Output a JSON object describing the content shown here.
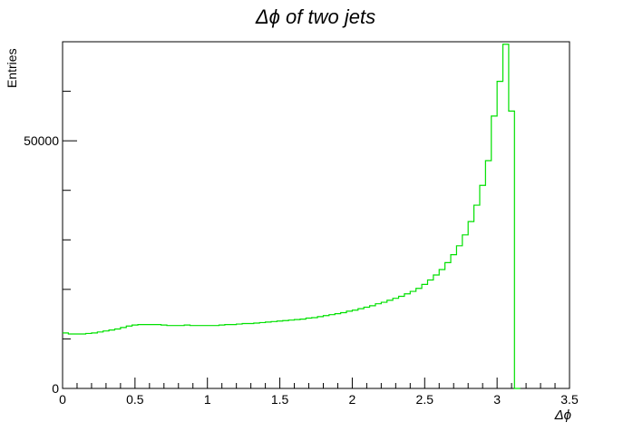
{
  "chart_data": {
    "type": "step-histogram",
    "title": "Δϕ   of   two   jets",
    "xlabel": "Δϕ",
    "ylabel": "Entries",
    "xlim": [
      0,
      3.5
    ],
    "ylim": [
      0,
      70000
    ],
    "x_ticks": [
      {
        "value": 0,
        "label": "0"
      },
      {
        "value": 0.5,
        "label": "0.5"
      },
      {
        "value": 1,
        "label": "1"
      },
      {
        "value": 1.5,
        "label": "1.5"
      },
      {
        "value": 2,
        "label": "2"
      },
      {
        "value": 2.5,
        "label": "2.5"
      },
      {
        "value": 3,
        "label": "3"
      },
      {
        "value": 3.5,
        "label": "3.5"
      }
    ],
    "y_ticks": [
      {
        "value": 0,
        "label": "0"
      },
      {
        "value": 50000,
        "label": "50000"
      }
    ],
    "line_color": "#00e000",
    "bin_edges_x": [
      0,
      3.15
    ],
    "bin_width": 0.04,
    "values": [
      11200,
      11000,
      11000,
      11000,
      11100,
      11200,
      11400,
      11600,
      11800,
      12000,
      12300,
      12600,
      12800,
      12900,
      12900,
      12900,
      12900,
      12800,
      12700,
      12700,
      12700,
      12800,
      12700,
      12700,
      12700,
      12700,
      12700,
      12800,
      12900,
      12900,
      13000,
      13100,
      13100,
      13200,
      13300,
      13400,
      13500,
      13600,
      13700,
      13800,
      13900,
      14000,
      14200,
      14300,
      14500,
      14700,
      14900,
      15100,
      15300,
      15600,
      15800,
      16100,
      16400,
      16700,
      17100,
      17400,
      17800,
      18200,
      18600,
      19100,
      19600,
      20200,
      21000,
      21900,
      22900,
      24000,
      25400,
      27000,
      28800,
      31000,
      33700,
      37000,
      41000,
      46000,
      55000,
      62000,
      69500,
      56000,
      0
    ]
  }
}
